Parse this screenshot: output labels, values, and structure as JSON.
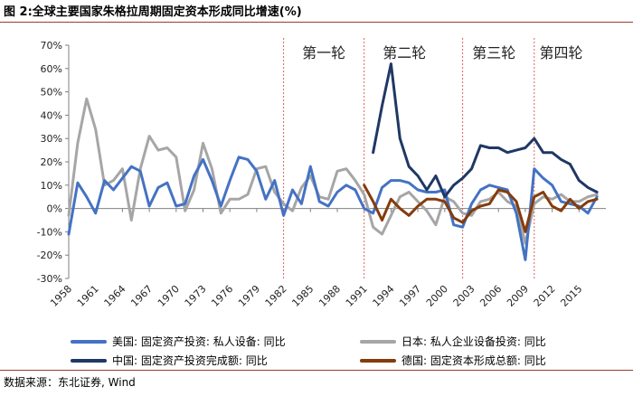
{
  "figure": {
    "title": "图 2:全球主要国家朱格拉周期固定资本形成同比增速(%)",
    "source": "数据来源：东北证券, Wind"
  },
  "chart_data": {
    "type": "line",
    "ylim": [
      -30,
      70
    ],
    "yticks": [
      "-30%",
      "-20%",
      "-10%",
      "0%",
      "10%",
      "20%",
      "30%",
      "40%",
      "50%",
      "60%",
      "70%"
    ],
    "xlim": [
      1958,
      2018
    ],
    "xticks": [
      "1958",
      "1961",
      "1964",
      "1967",
      "1970",
      "1973",
      "1976",
      "1979",
      "1982",
      "1985",
      "1988",
      "1991",
      "1994",
      "1997",
      "2000",
      "2003",
      "2006",
      "2009",
      "2012",
      "2015"
    ],
    "cycle_lines": [
      1982,
      1991,
      2002,
      2010
    ],
    "cycle_labels": [
      {
        "text": "第一轮",
        "x": 1986.5
      },
      {
        "text": "第二轮",
        "x": 1995.5
      },
      {
        "text": "第三轮",
        "x": 2005.5
      },
      {
        "text": "第四轮",
        "x": 2013.0
      }
    ],
    "series": [
      {
        "name": "美国: 固定资产投资: 私人设备: 同比",
        "color": "#4472c4",
        "x": [
          1958,
          1959,
          1960,
          1961,
          1962,
          1963,
          1964,
          1965,
          1966,
          1967,
          1968,
          1969,
          1970,
          1971,
          1972,
          1973,
          1974,
          1975,
          1976,
          1977,
          1978,
          1979,
          1980,
          1981,
          1982,
          1983,
          1984,
          1985,
          1986,
          1987,
          1988,
          1989,
          1990,
          1991,
          1992,
          1993,
          1994,
          1995,
          1996,
          1997,
          1998,
          1999,
          2000,
          2001,
          2002,
          2003,
          2004,
          2005,
          2006,
          2007,
          2008,
          2009,
          2010,
          2011,
          2012,
          2013,
          2014,
          2015,
          2016,
          2017
        ],
        "values": [
          -11,
          11,
          5,
          -2,
          12,
          8,
          13,
          18,
          16,
          1,
          9,
          11,
          1,
          2,
          14,
          21,
          12,
          1,
          12,
          22,
          21,
          16,
          4,
          12,
          -3,
          8,
          2,
          18,
          3,
          1,
          7,
          10,
          8,
          0,
          -2,
          9,
          12,
          12,
          11,
          8,
          7,
          7,
          8,
          -7,
          -8,
          2,
          8,
          10,
          9,
          8,
          -2,
          -22,
          17,
          13,
          10,
          3,
          2,
          1,
          -2,
          5
        ]
      },
      {
        "name": "日本: 私人企业设备投资: 同比",
        "color": "#a6a6a6",
        "x": [
          1958,
          1959,
          1960,
          1961,
          1962,
          1963,
          1964,
          1965,
          1966,
          1967,
          1968,
          1969,
          1970,
          1971,
          1972,
          1973,
          1974,
          1975,
          1976,
          1977,
          1978,
          1979,
          1980,
          1981,
          1982,
          1983,
          1984,
          1985,
          1986,
          1987,
          1988,
          1989,
          1990,
          1991,
          1992,
          1993,
          1994,
          1995,
          1996,
          1997,
          1998,
          1999,
          2000,
          2001,
          2002,
          2003,
          2004,
          2005,
          2006,
          2007,
          2008,
          2009,
          2010,
          2011,
          2012,
          2013,
          2014,
          2015,
          2016,
          2017
        ],
        "values": [
          -3,
          28,
          47,
          34,
          10,
          12,
          17,
          -5,
          17,
          31,
          25,
          26,
          22,
          -1,
          8,
          28,
          17,
          -2,
          4,
          4,
          6,
          17,
          18,
          7,
          2,
          -1,
          9,
          14,
          5,
          4,
          16,
          17,
          12,
          6,
          -8,
          -11,
          -3,
          5,
          7,
          3,
          -1,
          -7,
          5,
          3,
          -2,
          -3,
          3,
          4,
          7,
          3,
          1,
          -15,
          2,
          5,
          4,
          6,
          3,
          3,
          5,
          6
        ]
      },
      {
        "name": "中国: 固定资产投资完成额: 同比",
        "color": "#1f3864",
        "x": [
          1992,
          1993,
          1994,
          1995,
          1996,
          1997,
          1998,
          1999,
          2000,
          2001,
          2002,
          2003,
          2004,
          2005,
          2006,
          2007,
          2008,
          2009,
          2010,
          2011,
          2012,
          2013,
          2014,
          2015,
          2016,
          2017
        ],
        "values": [
          24,
          44,
          62,
          30,
          18,
          14,
          8,
          14,
          5,
          10,
          13,
          17,
          27,
          26,
          26,
          24,
          25,
          26,
          30,
          24,
          24,
          21,
          19,
          12,
          9,
          7
        ]
      },
      {
        "name": "德国: 固定资本形成总额: 同比",
        "color": "#843c0c",
        "x": [
          1991,
          1992,
          1993,
          1994,
          1995,
          1996,
          1997,
          1998,
          1999,
          2000,
          2001,
          2002,
          2003,
          2004,
          2005,
          2006,
          2007,
          2008,
          2009,
          2010,
          2011,
          2012,
          2013,
          2014,
          2015,
          2016,
          2017
        ],
        "values": [
          10,
          3,
          -5,
          4,
          0,
          -3,
          1,
          4,
          4,
          3,
          -4,
          -6,
          -1,
          1,
          2,
          8,
          7,
          3,
          -10,
          5,
          7,
          1,
          -1,
          4,
          0,
          3,
          4
        ]
      }
    ]
  }
}
